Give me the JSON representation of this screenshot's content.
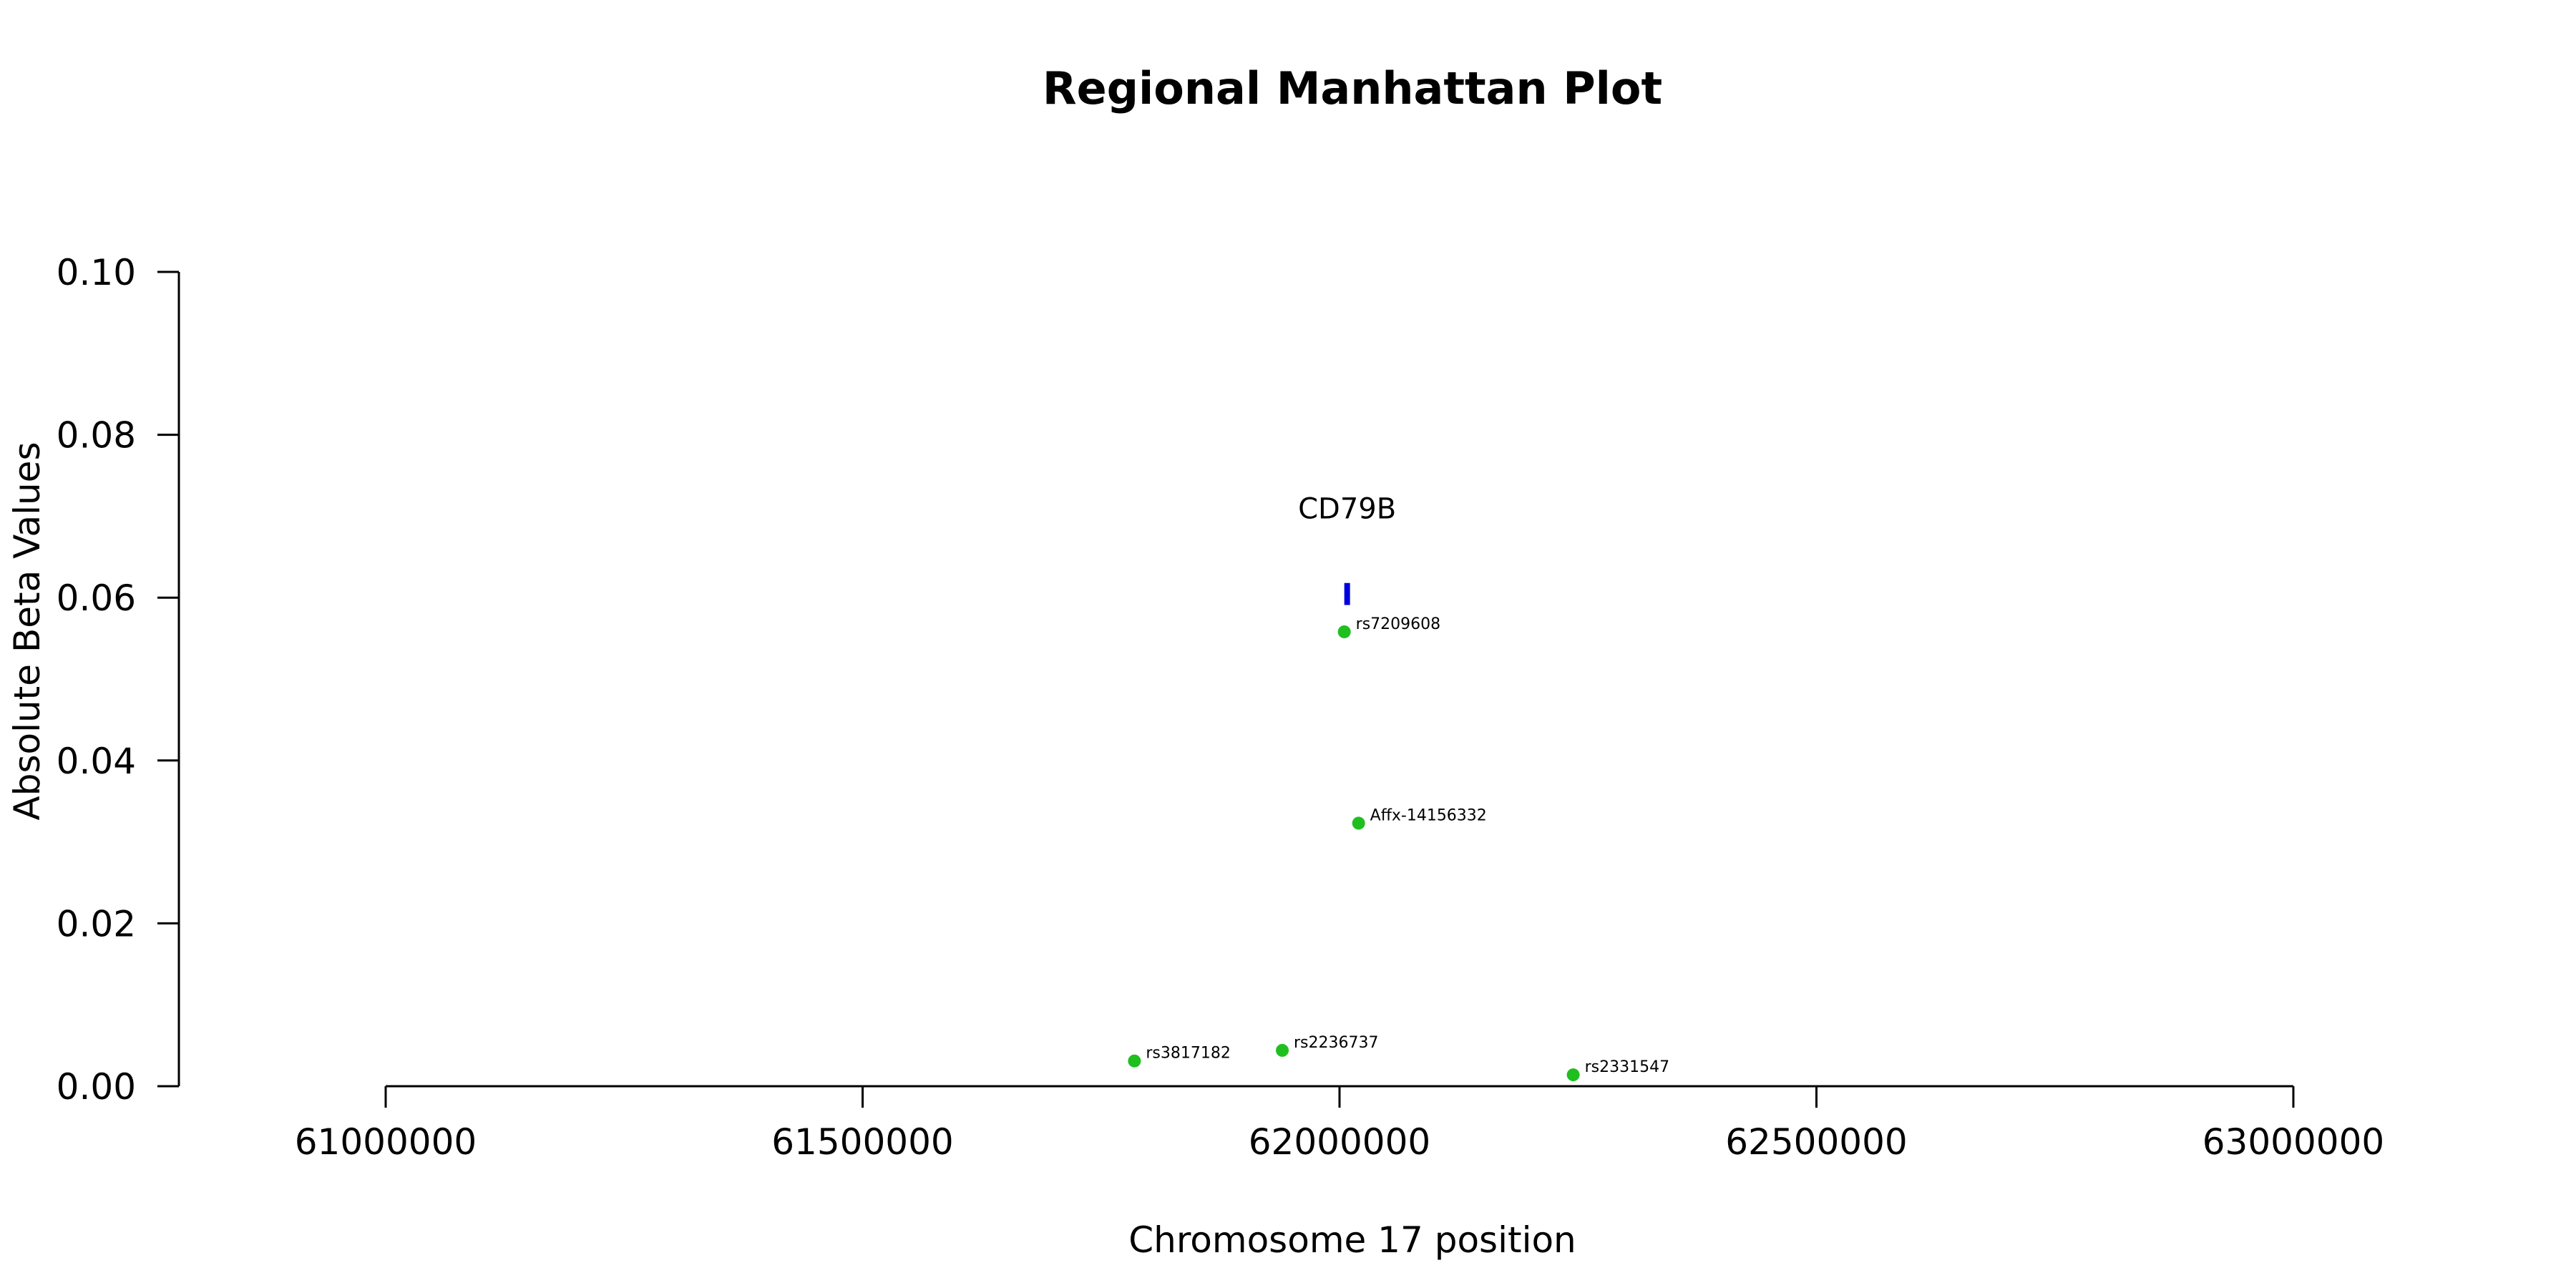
{
  "chart_data": {
    "type": "scatter",
    "title": "Regional Manhattan Plot",
    "xlabel": "Chromosome 17 position",
    "ylabel": "Absolute Beta Values",
    "xlim": [
      61000000,
      63000000
    ],
    "ylim": [
      0,
      0.1
    ],
    "x_ticks": [
      "61000000",
      "61500000",
      "62000000",
      "62500000",
      "63000000"
    ],
    "y_ticks": [
      "0.00",
      "0.02",
      "0.04",
      "0.06",
      "0.08",
      "0.10"
    ],
    "grid": false,
    "point_color": "#1fbf1f",
    "points": [
      {
        "label": "rs7209608",
        "x": 62005000,
        "y": 0.0558
      },
      {
        "label": "Affx-14156332",
        "x": 62020000,
        "y": 0.0323
      },
      {
        "label": "rs3817182",
        "x": 61785000,
        "y": 0.0031
      },
      {
        "label": "rs2236737",
        "x": 61940000,
        "y": 0.0044
      },
      {
        "label": "rs2331547",
        "x": 62245000,
        "y": 0.0014
      }
    ],
    "genes": [
      {
        "name": "CD79B",
        "x": 62008000,
        "y_low": 0.0591,
        "y_high": 0.0618,
        "color": "#0000dd"
      }
    ]
  }
}
